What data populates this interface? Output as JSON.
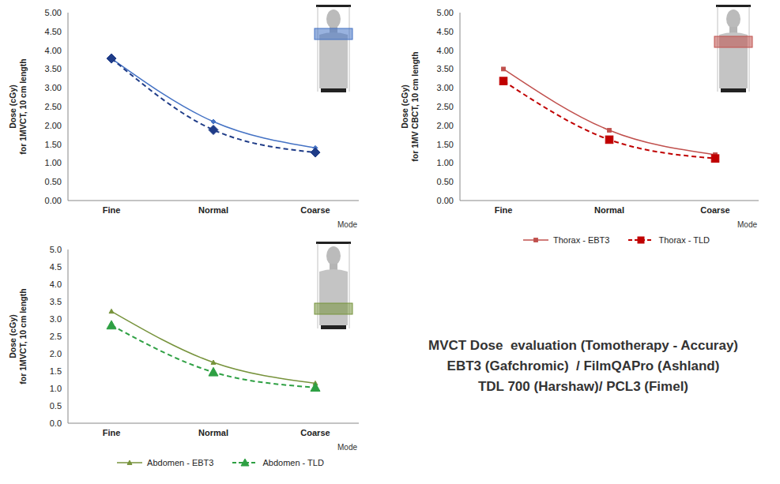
{
  "chart_data": [
    {
      "type": "line",
      "ylabel": "Dose (cGy)\nfor 1MVCT, 10 cm length",
      "xlabel": "Mode",
      "categories": [
        "Fine",
        "Normal",
        "Coarse"
      ],
      "series": [
        {
          "color": "#4472c4",
          "line_style": "solid",
          "marker": "diamond",
          "values": [
            3.78,
            2.1,
            1.4
          ]
        },
        {
          "color": "#1f3c88",
          "line_style": "dashed",
          "marker": "diamond",
          "values": [
            3.78,
            1.88,
            1.28
          ]
        }
      ],
      "ylim": [
        0,
        5
      ],
      "yticks": [
        {
          "value": 0,
          "label": "0.00"
        },
        {
          "value": 0.5,
          "label": "0.50"
        },
        {
          "value": 1,
          "label": "1.00"
        },
        {
          "value": 1.5,
          "label": "1.50"
        },
        {
          "value": 2,
          "label": "2.00"
        },
        {
          "value": 2.5,
          "label": "2.50"
        },
        {
          "value": 3,
          "label": "3.00"
        },
        {
          "value": 3.5,
          "label": "3.50"
        },
        {
          "value": 4,
          "label": "4.00"
        },
        {
          "value": 4.5,
          "label": "4.50"
        },
        {
          "value": 5,
          "label": "5.00"
        }
      ],
      "grid": false
    },
    {
      "type": "line",
      "ylabel": "Dose (cGy)\nfor 1MV CBCT, 10 cm length",
      "xlabel": "Mode",
      "categories": [
        "Fine",
        "Normal",
        "Coarse"
      ],
      "series": [
        {
          "name": "Thorax - EBT3",
          "color": "#c0504d",
          "line_style": "solid",
          "marker": "square",
          "values": [
            3.5,
            1.87,
            1.22
          ]
        },
        {
          "name": "Thorax - TLD",
          "color": "#c00000",
          "line_style": "dashed",
          "marker": "square",
          "values": [
            3.18,
            1.62,
            1.12
          ]
        }
      ],
      "ylim": [
        0,
        5
      ],
      "yticks": [
        {
          "value": 0,
          "label": "0.00"
        },
        {
          "value": 0.5,
          "label": "0.50"
        },
        {
          "value": 1,
          "label": "1.00"
        },
        {
          "value": 1.5,
          "label": "1.50"
        },
        {
          "value": 2,
          "label": "2.00"
        },
        {
          "value": 2.5,
          "label": "2.50"
        },
        {
          "value": 3,
          "label": "3.00"
        },
        {
          "value": 3.5,
          "label": "3.50"
        },
        {
          "value": 4,
          "label": "4.00"
        },
        {
          "value": 4.5,
          "label": "4.50"
        },
        {
          "value": 5,
          "label": "5.00"
        }
      ],
      "grid": false,
      "legend": "bottom"
    },
    {
      "type": "line",
      "ylabel": "Dose (cGy)\nfor 1MVCT, 10 cm length",
      "xlabel": "Mode",
      "categories": [
        "Fine",
        "Normal",
        "Coarse"
      ],
      "series": [
        {
          "name": "Abdomen - EBT3",
          "color": "#77933c",
          "line_style": "solid",
          "marker": "triangle",
          "values": [
            3.22,
            1.75,
            1.15
          ]
        },
        {
          "name": "Abdomen - TLD",
          "color": "#2ea043",
          "line_style": "dashed",
          "marker": "triangle",
          "values": [
            2.82,
            1.47,
            1.03
          ]
        }
      ],
      "ylim": [
        0,
        5
      ],
      "yticks": [
        {
          "value": 0,
          "label": "0.0"
        },
        0.5,
        {
          "value": 1,
          "label": "1.0"
        },
        1.5,
        {
          "value": 2,
          "label": "2.0"
        },
        2.5,
        {
          "value": 3,
          "label": "3.0"
        },
        3.5,
        {
          "value": 4,
          "label": "4.0"
        },
        4.5,
        {
          "value": 5,
          "label": "5.0"
        }
      ],
      "grid": false,
      "legend": "bottom"
    }
  ],
  "text": [
    "MVCT Dose  evaluation (Tomotherapy - Accuray)",
    "EBT3 (Gafchromic)  / FilmQAPro (Ashland)",
    "TDL 700 (Harshaw)/ PCL3 (Fimel)"
  ]
}
